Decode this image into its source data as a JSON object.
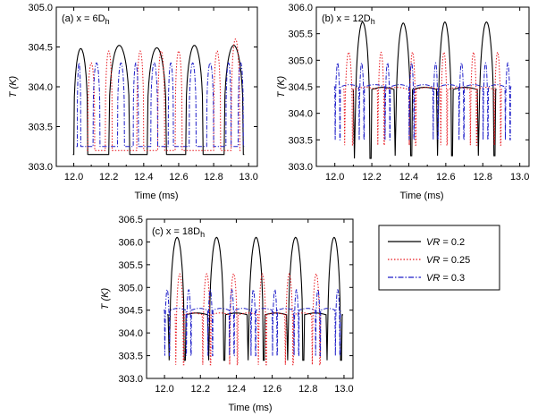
{
  "chart_data": [
    {
      "type": "line",
      "panel_label": "(a)  x = 6D",
      "panel_label_sub": "h",
      "xlabel": "Time (ms)",
      "ylabel": "T (K)",
      "xlim": [
        11.9,
        13.05
      ],
      "ylim": [
        303.0,
        305.0
      ],
      "xticks": [
        "12.0",
        "12.2",
        "12.4",
        "12.6",
        "12.8",
        "13.0"
      ],
      "yticks": [
        "303.0",
        "303.5",
        "304.0",
        "304.5",
        "305.0"
      ],
      "series": [
        {
          "name": "VR = 0.2",
          "baseline": 303.15,
          "cycles": [
            {
              "start": 12.0,
              "end": 12.08,
              "peak": 304.48
            },
            {
              "start": 12.2,
              "end": 12.32,
              "peak": 304.52
            },
            {
              "start": 12.42,
              "end": 12.53,
              "peak": 304.49
            },
            {
              "start": 12.64,
              "end": 12.74,
              "peak": 304.52
            },
            {
              "start": 12.86,
              "end": 12.97,
              "peak": 304.52
            }
          ]
        },
        {
          "name": "VR = 0.25",
          "baseline": 303.2,
          "cycles": [
            {
              "start": 12.08,
              "end": 12.12,
              "peak": 304.3
            },
            {
              "start": 12.18,
              "end": 12.22,
              "peak": 304.45
            },
            {
              "start": 12.36,
              "end": 12.4,
              "peak": 304.45
            },
            {
              "start": 12.48,
              "end": 12.52,
              "peak": 304.45
            },
            {
              "start": 12.58,
              "end": 12.62,
              "peak": 304.45
            },
            {
              "start": 12.8,
              "end": 12.84,
              "peak": 304.45
            },
            {
              "start": 12.9,
              "end": 12.95,
              "peak": 304.6
            }
          ]
        },
        {
          "name": "VR = 0.3",
          "baseline": 303.25,
          "cycles": [
            {
              "start": 12.02,
              "end": 12.04,
              "peak": 304.3
            },
            {
              "start": 12.11,
              "end": 12.15,
              "peak": 304.3
            },
            {
              "start": 12.25,
              "end": 12.29,
              "peak": 304.3
            },
            {
              "start": 12.34,
              "end": 12.37,
              "peak": 304.3
            },
            {
              "start": 12.44,
              "end": 12.48,
              "peak": 304.3
            },
            {
              "start": 12.54,
              "end": 12.57,
              "peak": 304.3
            },
            {
              "start": 12.66,
              "end": 12.7,
              "peak": 304.3
            },
            {
              "start": 12.76,
              "end": 12.8,
              "peak": 304.3
            },
            {
              "start": 12.87,
              "end": 12.9,
              "peak": 304.3
            },
            {
              "start": 12.94,
              "end": 12.97,
              "peak": 304.3
            }
          ]
        }
      ]
    },
    {
      "type": "line",
      "panel_label": "(b)  x = 12D",
      "panel_label_sub": "h",
      "xlabel": "Time (ms)",
      "ylabel": "T (K)",
      "xlim": [
        11.9,
        13.05
      ],
      "ylim": [
        303.0,
        306.0
      ],
      "xticks": [
        "12.0",
        "12.2",
        "12.4",
        "12.6",
        "12.8",
        "13.0"
      ],
      "yticks": [
        "303.0",
        "303.5",
        "304.0",
        "304.5",
        "305.0",
        "305.5",
        "306.0"
      ],
      "series": [
        {
          "name": "VR = 0.2",
          "baseline": 304.45,
          "cycles": [
            {
              "start": 12.1,
              "end": 12.2,
              "peak": 305.72,
              "dip": 303.15
            },
            {
              "start": 12.32,
              "end": 12.42,
              "peak": 305.7,
              "dip": 303.2
            },
            {
              "start": 12.55,
              "end": 12.64,
              "peak": 305.72,
              "dip": 303.2
            },
            {
              "start": 12.77,
              "end": 12.87,
              "peak": 305.72,
              "dip": 303.2
            }
          ]
        },
        {
          "name": "VR = 0.25",
          "baseline": 304.45,
          "cycles": [
            {
              "start": 12.05,
              "end": 12.1,
              "peak": 305.15,
              "dip": 303.4
            },
            {
              "start": 12.23,
              "end": 12.27,
              "peak": 305.15,
              "dip": 303.4
            },
            {
              "start": 12.4,
              "end": 12.44,
              "peak": 305.15,
              "dip": 303.4
            },
            {
              "start": 12.57,
              "end": 12.61,
              "peak": 305.15,
              "dip": 303.4
            },
            {
              "start": 12.73,
              "end": 12.77,
              "peak": 305.15,
              "dip": 303.4
            },
            {
              "start": 12.86,
              "end": 12.9,
              "peak": 305.15,
              "dip": 303.4
            }
          ]
        },
        {
          "name": "VR = 0.3",
          "baseline": 304.5,
          "cycles": [
            {
              "start": 12.0,
              "end": 12.03,
              "peak": 304.95,
              "dip": 303.5
            },
            {
              "start": 12.13,
              "end": 12.16,
              "peak": 304.95,
              "dip": 303.5
            },
            {
              "start": 12.27,
              "end": 12.3,
              "peak": 304.95,
              "dip": 303.5
            },
            {
              "start": 12.4,
              "end": 12.43,
              "peak": 304.95,
              "dip": 303.5
            },
            {
              "start": 12.53,
              "end": 12.56,
              "peak": 304.95,
              "dip": 303.5
            },
            {
              "start": 12.67,
              "end": 12.7,
              "peak": 304.95,
              "dip": 303.5
            },
            {
              "start": 12.8,
              "end": 12.83,
              "peak": 304.95,
              "dip": 303.5
            },
            {
              "start": 12.92,
              "end": 12.95,
              "peak": 304.95,
              "dip": 303.5
            }
          ]
        }
      ]
    },
    {
      "type": "line",
      "panel_label": "(c)  x = 18D",
      "panel_label_sub": "h",
      "xlabel": "Time (ms)",
      "ylabel": "T (K)",
      "xlim": [
        11.9,
        13.05
      ],
      "ylim": [
        303.0,
        306.5
      ],
      "xticks": [
        "12.0",
        "12.2",
        "12.4",
        "12.6",
        "12.8",
        "13.0"
      ],
      "yticks": [
        "303.0",
        "303.5",
        "304.0",
        "304.5",
        "305.0",
        "305.5",
        "306.0",
        "306.5"
      ],
      "series": [
        {
          "name": "VR = 0.2",
          "baseline": 304.4,
          "cycles": [
            {
              "start": 12.02,
              "end": 12.12,
              "peak": 306.1,
              "dip": 303.4
            },
            {
              "start": 12.24,
              "end": 12.34,
              "peak": 306.1,
              "dip": 303.4
            },
            {
              "start": 12.46,
              "end": 12.56,
              "peak": 306.1,
              "dip": 303.4
            },
            {
              "start": 12.68,
              "end": 12.78,
              "peak": 306.1,
              "dip": 303.4
            },
            {
              "start": 12.9,
              "end": 12.99,
              "peak": 306.1,
              "dip": 303.4
            }
          ]
        },
        {
          "name": "VR = 0.25",
          "baseline": 304.4,
          "cycles": [
            {
              "start": 12.06,
              "end": 12.11,
              "peak": 305.3,
              "dip": 303.3
            },
            {
              "start": 12.21,
              "end": 12.26,
              "peak": 305.3,
              "dip": 303.3
            },
            {
              "start": 12.36,
              "end": 12.41,
              "peak": 305.3,
              "dip": 303.3
            },
            {
              "start": 12.52,
              "end": 12.57,
              "peak": 305.3,
              "dip": 303.3
            },
            {
              "start": 12.67,
              "end": 12.72,
              "peak": 305.3,
              "dip": 303.3
            },
            {
              "start": 12.82,
              "end": 12.87,
              "peak": 305.3,
              "dip": 303.3
            }
          ]
        },
        {
          "name": "VR = 0.3",
          "baseline": 304.5,
          "cycles": [
            {
              "start": 12.0,
              "end": 12.03,
              "peak": 304.95,
              "dip": 303.5
            },
            {
              "start": 12.12,
              "end": 12.15,
              "peak": 304.95,
              "dip": 303.5
            },
            {
              "start": 12.24,
              "end": 12.27,
              "peak": 304.95,
              "dip": 303.5
            },
            {
              "start": 12.36,
              "end": 12.39,
              "peak": 304.95,
              "dip": 303.5
            },
            {
              "start": 12.48,
              "end": 12.51,
              "peak": 304.95,
              "dip": 303.5
            },
            {
              "start": 12.6,
              "end": 12.63,
              "peak": 304.95,
              "dip": 303.5
            },
            {
              "start": 12.72,
              "end": 12.75,
              "peak": 304.95,
              "dip": 303.5
            },
            {
              "start": 12.84,
              "end": 12.87,
              "peak": 304.95,
              "dip": 303.5
            },
            {
              "start": 12.95,
              "end": 12.98,
              "peak": 304.95,
              "dip": 303.5
            }
          ]
        }
      ]
    }
  ],
  "legend": {
    "placement": "right of panel c",
    "entries": [
      {
        "label": "VR = 0.2",
        "label_var": "VR",
        "label_rest": " = 0.2",
        "color": "#000000",
        "dash": "solid"
      },
      {
        "label": "VR = 0.25",
        "label_var": "VR",
        "label_rest": " = 0.25",
        "color": "#e8141b",
        "dash": "dotted"
      },
      {
        "label": "VR = 0.3",
        "label_var": "VR",
        "label_rest": " = 0.3",
        "color": "#1c1cc8",
        "dash": "dashdot"
      }
    ]
  },
  "colors": {
    "vr02": "#000000",
    "vr025": "#e8141b",
    "vr03": "#1c1cc8"
  }
}
